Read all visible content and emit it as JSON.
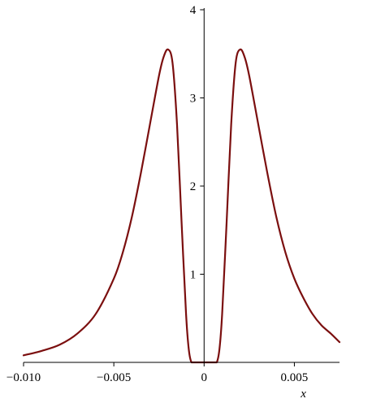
{
  "chart_data": {
    "type": "line",
    "title": "",
    "xlabel": "x",
    "ylabel": "",
    "xlim": [
      -0.01,
      0.0075
    ],
    "ylim": [
      0,
      4
    ],
    "grid": false,
    "line_color": "#7b0f0f",
    "x_ticks": [
      {
        "value": -0.01,
        "label": "−0.010"
      },
      {
        "value": -0.005,
        "label": "−0.005"
      },
      {
        "value": 0,
        "label": "0"
      },
      {
        "value": 0.005,
        "label": "0.005"
      }
    ],
    "y_ticks": [
      {
        "value": 1,
        "label": "1"
      },
      {
        "value": 2,
        "label": "2"
      },
      {
        "value": 3,
        "label": "3"
      },
      {
        "value": 4,
        "label": "4"
      }
    ],
    "series": [
      {
        "x": [
          -0.01,
          -0.009,
          -0.008,
          -0.007,
          -0.006,
          -0.005,
          -0.0045,
          -0.004,
          -0.0035,
          -0.003,
          -0.0025,
          -0.00225,
          -0.002,
          -0.00175,
          -0.0015,
          -0.00125,
          -0.001,
          -0.00085,
          -0.0007,
          -0.0005,
          0,
          0.0005,
          0.0007,
          0.00085,
          0.001,
          0.00125,
          0.0015,
          0.00175,
          0.002,
          0.00225,
          0.0025,
          0.003,
          0.0035,
          0.004,
          0.0045,
          0.005,
          0.0055,
          0.006,
          0.0065,
          0.007,
          0.0075
        ],
        "values": [
          0.08,
          0.13,
          0.2,
          0.33,
          0.55,
          0.95,
          1.25,
          1.65,
          2.15,
          2.7,
          3.25,
          3.46,
          3.55,
          3.4,
          2.7,
          1.6,
          0.55,
          0.15,
          0.0,
          0.0,
          0.0,
          0.0,
          0.0,
          0.15,
          0.55,
          1.6,
          2.7,
          3.4,
          3.55,
          3.46,
          3.25,
          2.7,
          2.15,
          1.65,
          1.25,
          0.95,
          0.73,
          0.55,
          0.42,
          0.33,
          0.23
        ]
      }
    ]
  }
}
